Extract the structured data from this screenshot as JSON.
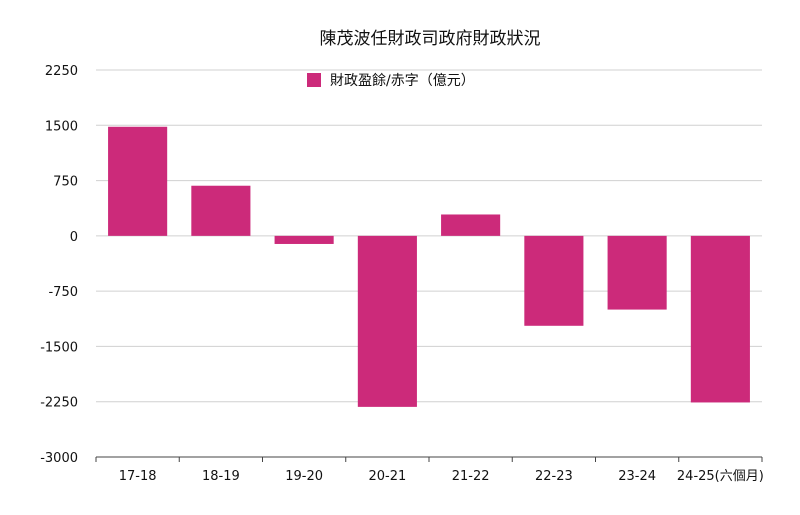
{
  "chart_data": {
    "type": "bar",
    "title": "陳茂波任財政司政府財政狀況",
    "categories": [
      "17-18",
      "18-19",
      "19-20",
      "20-21",
      "21-22",
      "22-23",
      "23-24",
      "24-25(六個月)"
    ],
    "series": [
      {
        "name": "財政盈餘/赤字（億元）",
        "values": [
          1480,
          680,
          -110,
          -2320,
          290,
          -1220,
          -1000,
          -2260
        ],
        "color": "#cc2a7a"
      }
    ],
    "yticks": [
      2250,
      1500,
      750,
      0,
      -750,
      -1500,
      -2250,
      -3000
    ],
    "ylim": [
      -3000,
      2250
    ],
    "grid": true,
    "legend": "top-center"
  }
}
